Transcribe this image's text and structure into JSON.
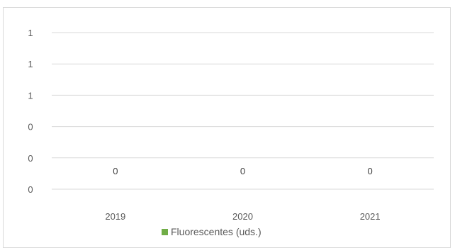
{
  "chart_data": {
    "type": "bar",
    "categories": [
      "2019",
      "2020",
      "2021"
    ],
    "series": [
      {
        "name": "Fluorescentes (uds.)",
        "values": [
          0,
          0,
          0
        ],
        "color": "#70ad47"
      }
    ],
    "y_tick_labels": [
      "1",
      "1",
      "1",
      "0",
      "0",
      "0"
    ],
    "data_labels": [
      "0",
      "0",
      "0"
    ],
    "grid": true,
    "legend_position": "bottom"
  }
}
